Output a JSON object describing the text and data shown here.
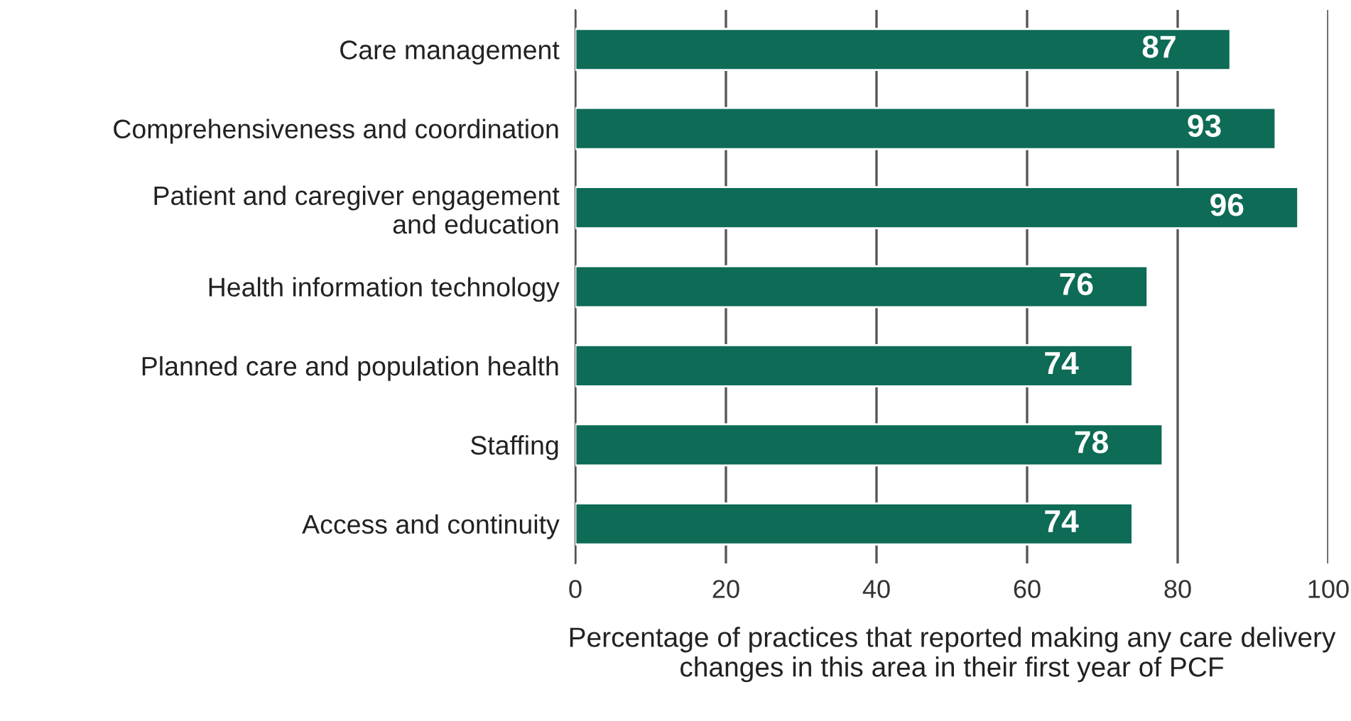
{
  "chart_data": {
    "type": "bar",
    "orientation": "horizontal",
    "categories": [
      "Care management",
      "Comprehensiveness and coordination",
      "Patient and caregiver engagement\nand education",
      "Health information technology",
      "Planned care and population health",
      "Staffing",
      "Access and continuity"
    ],
    "values": [
      87,
      93,
      96,
      76,
      74,
      78,
      74
    ],
    "color": "#0d6b56",
    "xlim": [
      0,
      100
    ],
    "xticks": [
      0,
      20,
      40,
      60,
      80,
      100
    ],
    "grid": "x",
    "data_labels": true,
    "xlabel": "Percentage of practices that reported making any care delivery changes in this area in their first year of PCF"
  }
}
